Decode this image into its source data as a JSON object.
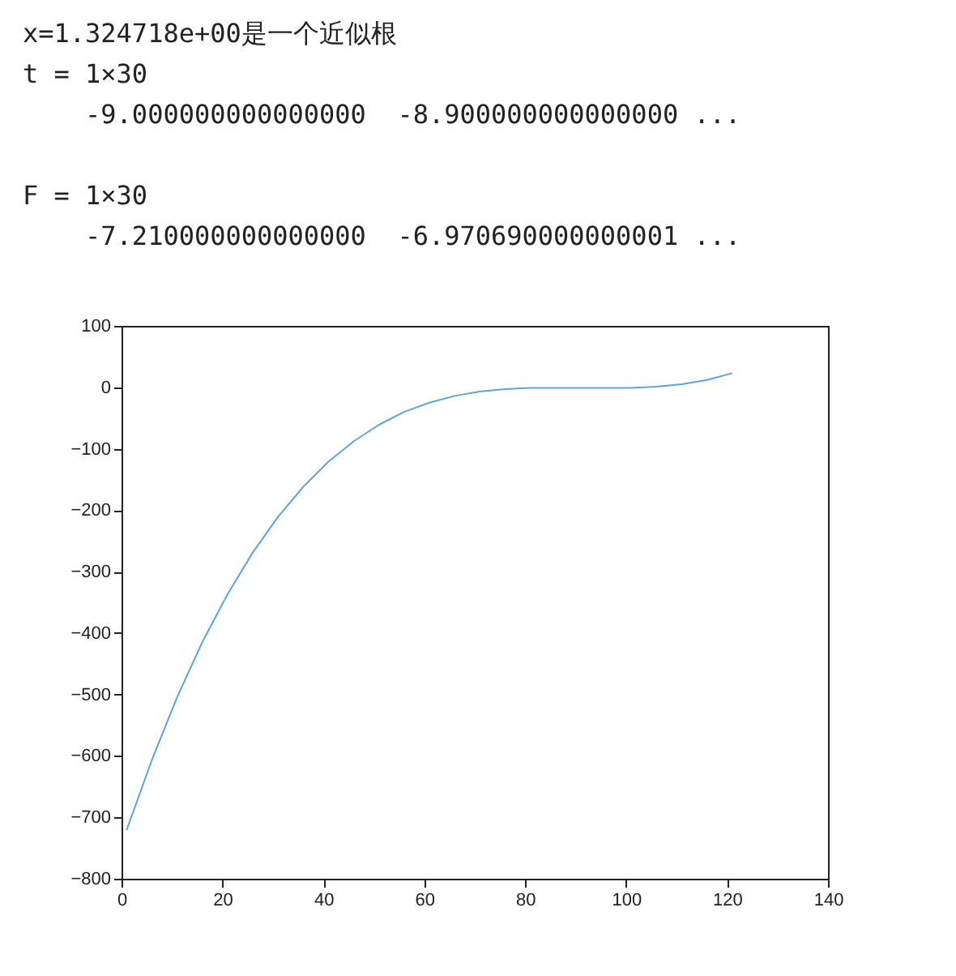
{
  "chart_data": {
    "type": "line",
    "annotations": [
      "x=1.324718e+00是一个近似根",
      "t = 1×30",
      "    -9.000000000000000  -8.900000000000000 ...",
      "F = 1×30",
      "    -7.210000000000000  -6.970690000000001 ..."
    ],
    "x": [
      1,
      6,
      11,
      16,
      21,
      26,
      31,
      36,
      41,
      46,
      51,
      56,
      61,
      66,
      71,
      76,
      81,
      86,
      91,
      96,
      101,
      106,
      111,
      116,
      121
    ],
    "series": [
      {
        "color": "#5ea3dc",
        "values": [
          -721,
          -607,
          -505,
          -415,
          -337,
          -269,
          -211,
          -162,
          -121,
          -88,
          -61,
          -40,
          -25,
          -14,
          -7,
          -3,
          -1,
          -1,
          -1,
          -1,
          -1,
          1,
          5,
          12,
          23
        ]
      }
    ],
    "xlim": [
      0,
      140
    ],
    "xticks": [
      0,
      20,
      40,
      60,
      80,
      100,
      120,
      140
    ],
    "ylim": [
      -800,
      100
    ],
    "yticks": [
      -800,
      -700,
      -600,
      -500,
      -400,
      -300,
      -200,
      -100,
      0,
      100
    ],
    "grid": false,
    "legend": false,
    "marker": "none",
    "line_style": "solid"
  }
}
